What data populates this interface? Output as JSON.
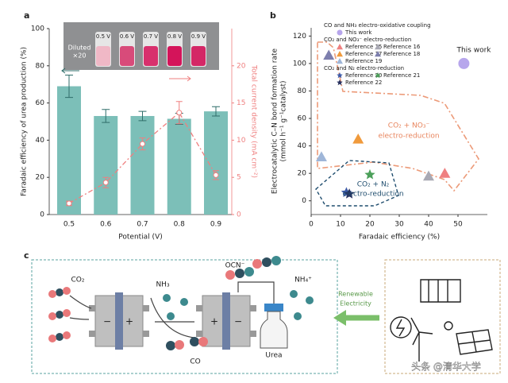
{
  "chart_data": [
    {
      "type": "bar",
      "label": "a",
      "categories": [
        "0.5",
        "0.6",
        "0.7",
        "0.8",
        "0.9"
      ],
      "xlabel": "Potential (V)",
      "ylabel": "Faradaic efficiency of urea production (%)",
      "y2label": "Total current density (mA cm⁻²)",
      "ylim": [
        0,
        100
      ],
      "yticks": [
        0,
        20,
        40,
        60,
        80,
        100
      ],
      "y2lim": [
        0,
        25
      ],
      "y2ticks": [
        0,
        5,
        10,
        15,
        20
      ],
      "series": [
        {
          "color": "#7cbfb8",
          "values": [
            69,
            53,
            53,
            51.5,
            55.5
          ],
          "errors": [
            6,
            3.5,
            2.5,
            3,
            2.5
          ]
        },
        {
          "axis": "y2",
          "color": "#ef7f7f",
          "values": [
            1.5,
            4.3,
            9.5,
            13.7,
            5.3
          ],
          "errors": [
            0.3,
            0.7,
            0.8,
            1.5,
            0.6
          ]
        }
      ],
      "inset": {
        "note": [
          "Diluted",
          "×20"
        ],
        "labels": [
          "0.5 V",
          "0.6 V",
          "0.7 V",
          "0.8 V",
          "0.9 V"
        ]
      }
    },
    {
      "type": "scatter",
      "label": "b",
      "xlabel": "Faradaic efficiency (%)",
      "ylabel": [
        "Electrocatalytic C–N bond formation rate",
        "(mmol h⁻¹ g⁻¹catalyst)"
      ],
      "xlim": [
        0,
        60
      ],
      "xticks": [
        0,
        10,
        20,
        30,
        40,
        50
      ],
      "ylim": [
        -10,
        126
      ],
      "yticks": [
        0,
        20,
        40,
        60,
        80,
        100,
        120
      ],
      "groups": [
        {
          "title": "CO and NH₃ electro-oxidative coupling",
          "series": [
            {
              "name": "This work",
              "color": "#b7a6ec",
              "marker": "circle",
              "x": [
                52
              ],
              "values": [
                100
              ]
            }
          ]
        },
        {
          "title": "CO₂ and NO₃⁻ electro-reduction",
          "series": [
            {
              "name": "Reference 15",
              "color": "#ef8080",
              "marker": "triangle",
              "x": [
                45.5
              ],
              "values": [
                20
              ]
            },
            {
              "name": "Reference 16",
              "color": "#a9a9b4",
              "marker": "triangle",
              "x": [
                40
              ],
              "values": [
                18
              ]
            },
            {
              "name": "Reference 17",
              "color": "#f09a3c",
              "marker": "triangle",
              "x": [
                16
              ],
              "values": [
                45
              ]
            },
            {
              "name": "Reference 18",
              "color": "#7d7fae",
              "marker": "triangle",
              "x": [
                6
              ],
              "values": [
                106
              ]
            },
            {
              "name": "Reference 19",
              "color": "#9fb6d8",
              "marker": "triangle",
              "x": [
                3.5
              ],
              "values": [
                32
              ]
            }
          ]
        },
        {
          "title": "CO₂ and N₂ electro-reduction",
          "series": [
            {
              "name": "Reference 20",
              "color": "#3c5aa8",
              "marker": "star",
              "x": [
                12
              ],
              "values": [
                6
              ]
            },
            {
              "name": "Reference 21",
              "color": "#4ca05a",
              "marker": "star",
              "x": [
                20
              ],
              "values": [
                19
              ]
            },
            {
              "name": "Reference 22",
              "color": "#27305e",
              "marker": "star",
              "x": [
                13
              ],
              "values": [
                5
              ]
            }
          ]
        }
      ],
      "annotations": {
        "this_work": "This work",
        "nitrate": [
          "CO₂ + NO₃⁻",
          "electro-reduction"
        ],
        "nitrogen": [
          "CO₂ + N₂",
          "electro-reduction"
        ]
      }
    }
  ],
  "diagram": {
    "label": "c",
    "co2": "CO₂",
    "nh3": "NH₃",
    "ocn": "OCN⁻",
    "nh4": "NH₄⁺",
    "co": "CO",
    "urea": "Urea",
    "power": [
      "Renewable",
      "Electricity"
    ],
    "signs": [
      "−",
      "+",
      "+",
      "−"
    ]
  },
  "watermark": "头条 @清华大学"
}
